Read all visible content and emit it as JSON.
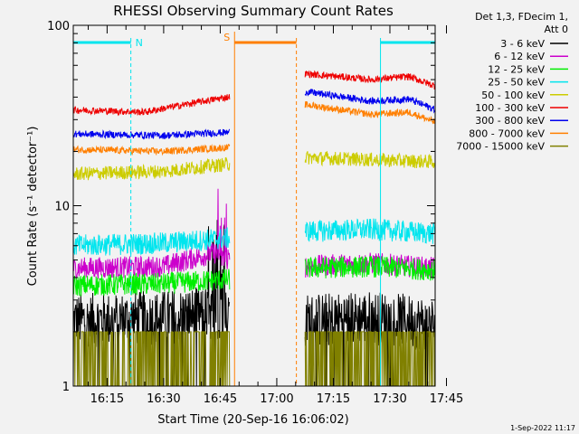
{
  "chart_data": {
    "type": "line",
    "title": "RHESSI Observing Summary Count Rates",
    "xlabel": "Start Time (20-Sep-16 16:06:02)",
    "ylabel": "Count Rate (s⁻¹ detector⁻¹)",
    "yscale": "log",
    "ylim": [
      1,
      100
    ],
    "xlim": [
      6.03,
      102
    ],
    "xlim_units": "minutes after 16:00",
    "y_ticks": [
      {
        "value": 1,
        "label": "1"
      },
      {
        "value": 10,
        "label": "10"
      },
      {
        "value": 100,
        "label": "100"
      }
    ],
    "x_ticks": [
      {
        "value": 15,
        "label": "16:15"
      },
      {
        "value": 30,
        "label": "16:30"
      },
      {
        "value": 45,
        "label": "16:45"
      },
      {
        "value": 60,
        "label": "17:00"
      },
      {
        "value": 75,
        "label": "17:15"
      },
      {
        "value": 90,
        "label": "17:30"
      },
      {
        "value": 105,
        "label": "17:45"
      }
    ],
    "legend_header": [
      "Det 1,3, FDecim 1,",
      "Att 0"
    ],
    "segments": [
      {
        "start": 6.03,
        "end": 47.5
      },
      {
        "start": 67.5,
        "end": 102
      }
    ],
    "series": [
      {
        "name": "3 - 6 keV",
        "color": "#000000",
        "levels": [
          [
            6,
            2.3
          ],
          [
            30,
            2.4
          ],
          [
            47,
            2.6
          ]
        ],
        "levels2": [
          [
            67,
            2.3
          ],
          [
            85,
            2.4
          ],
          [
            102,
            2.2
          ]
        ]
      },
      {
        "name": "6 - 12 keV",
        "color": "#cc00cc",
        "levels": [
          [
            6,
            4.5
          ],
          [
            30,
            4.6
          ],
          [
            44,
            5.5
          ],
          [
            46,
            5.0
          ]
        ],
        "levels2": [
          [
            67,
            4.6
          ],
          [
            85,
            4.8
          ],
          [
            102,
            4.5
          ]
        ]
      },
      {
        "name": "12 - 25 keV",
        "color": "#00ee00",
        "levels": [
          [
            6,
            3.6
          ],
          [
            30,
            3.7
          ],
          [
            47,
            3.9
          ]
        ],
        "levels2": [
          [
            67,
            4.5
          ],
          [
            85,
            4.6
          ],
          [
            102,
            4.4
          ]
        ]
      },
      {
        "name": "25 - 50 keV",
        "color": "#00e5ee",
        "levels": [
          [
            6,
            6.0
          ],
          [
            30,
            6.2
          ],
          [
            47,
            6.6
          ]
        ],
        "levels2": [
          [
            67,
            7.2
          ],
          [
            85,
            7.4
          ],
          [
            102,
            7.0
          ]
        ]
      },
      {
        "name": "50 - 100 keV",
        "color": "#cccc00",
        "levels": [
          [
            6,
            15.0
          ],
          [
            30,
            15.5
          ],
          [
            47,
            17.0
          ]
        ],
        "levels2": [
          [
            67,
            18.5
          ],
          [
            85,
            18.0
          ],
          [
            102,
            17.5
          ]
        ]
      },
      {
        "name": "100 - 300 keV",
        "color": "#ee0000",
        "levels": [
          [
            6,
            34.0
          ],
          [
            25,
            33.0
          ],
          [
            47,
            40.0
          ]
        ],
        "levels2": [
          [
            67,
            54.0
          ],
          [
            85,
            50.0
          ],
          [
            95,
            52.0
          ],
          [
            102,
            46.0
          ]
        ]
      },
      {
        "name": "300 - 800 keV",
        "color": "#0000ee",
        "levels": [
          [
            6,
            25.0
          ],
          [
            30,
            24.5
          ],
          [
            47,
            25.5
          ]
        ],
        "levels2": [
          [
            67,
            43.0
          ],
          [
            85,
            38.0
          ],
          [
            95,
            39.0
          ],
          [
            102,
            34.0
          ]
        ]
      },
      {
        "name": "800 - 7000 keV",
        "color": "#ff7f00",
        "levels": [
          [
            6,
            20.5
          ],
          [
            30,
            20.0
          ],
          [
            47,
            21.0
          ]
        ],
        "levels2": [
          [
            67,
            36.5
          ],
          [
            85,
            32.0
          ],
          [
            95,
            33.0
          ],
          [
            102,
            29.0
          ]
        ]
      },
      {
        "name": "7000 - 15000 keV",
        "color": "#808000",
        "levels": [
          [
            6,
            1.5
          ],
          [
            30,
            1.5
          ],
          [
            47,
            1.5
          ]
        ],
        "levels2": [
          [
            67,
            1.5
          ],
          [
            85,
            1.5
          ],
          [
            102,
            1.5
          ]
        ]
      }
    ],
    "flags": [
      {
        "label": "N",
        "color": "#00e5ee",
        "start": 6.03,
        "end": 21.3,
        "style": "solid-bar"
      },
      {
        "label": "S",
        "color": "#ff7f00",
        "start": 48.8,
        "end": 65.2,
        "style": "solid-bar"
      },
      {
        "label": "",
        "color": "#00e5ee",
        "start": 87.5,
        "end": 102,
        "style": "solid-bar"
      }
    ],
    "timestamp": "1-Sep-2022 11:17"
  }
}
